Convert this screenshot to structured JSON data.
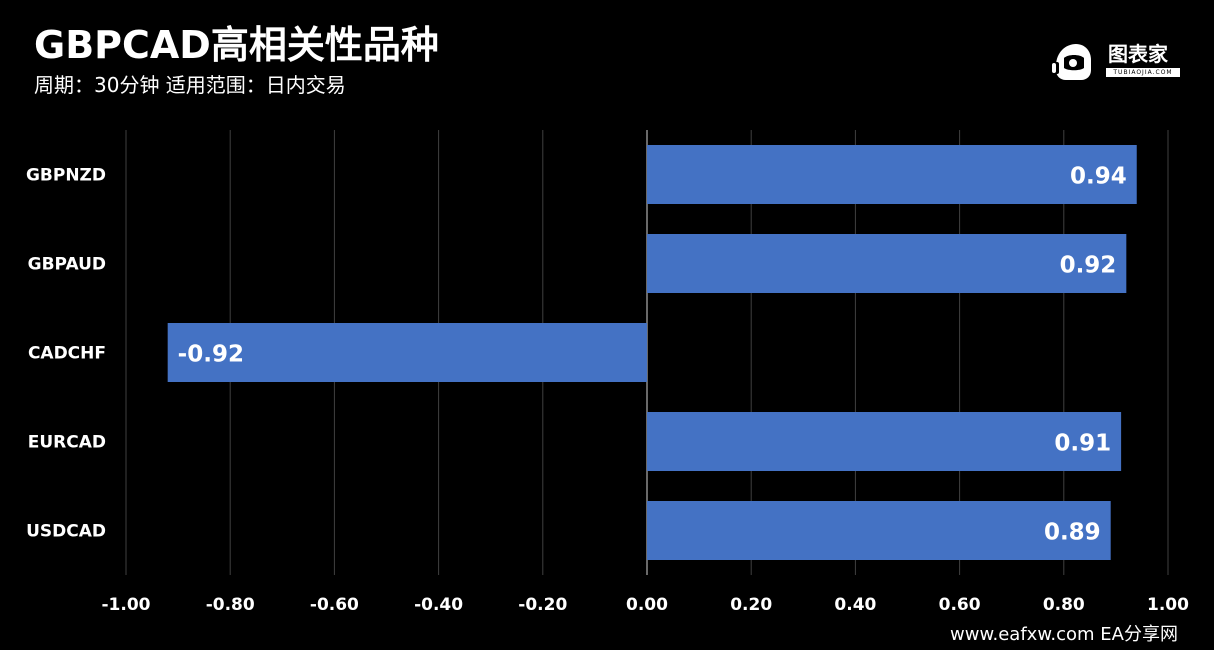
{
  "header": {
    "title": "GBPCAD高相关性品种",
    "subtitle": "周期：30分钟  适用范围：日内交易"
  },
  "logo": {
    "name": "图表家",
    "sub": "TUBIAOJIA.COM",
    "icon": "robot-head-icon"
  },
  "watermark": "www.eafxw.com   EA分享网",
  "colors": {
    "background": "#000000",
    "bar": "#4472C4",
    "grid": "#404040",
    "zero_line": "#8c8c8c",
    "text": "#ffffff"
  },
  "chart_data": {
    "type": "bar",
    "orientation": "horizontal",
    "categories": [
      "GBPNZD",
      "GBPAUD",
      "CADCHF",
      "EURCAD",
      "USDCAD"
    ],
    "values": [
      0.94,
      0.92,
      -0.92,
      0.91,
      0.89
    ],
    "value_labels": [
      "0.94",
      "0.92",
      "-0.92",
      "0.91",
      "0.89"
    ],
    "xlim": [
      -1.0,
      1.0
    ],
    "x_ticks": [
      -1.0,
      -0.8,
      -0.6,
      -0.4,
      -0.2,
      0.0,
      0.2,
      0.4,
      0.6,
      0.8,
      1.0
    ],
    "x_tick_labels": [
      "-1.00",
      "-0.80",
      "-0.60",
      "-0.40",
      "-0.20",
      "0.00",
      "0.20",
      "0.40",
      "0.60",
      "0.80",
      "1.00"
    ],
    "grid": true,
    "legend": "none"
  }
}
